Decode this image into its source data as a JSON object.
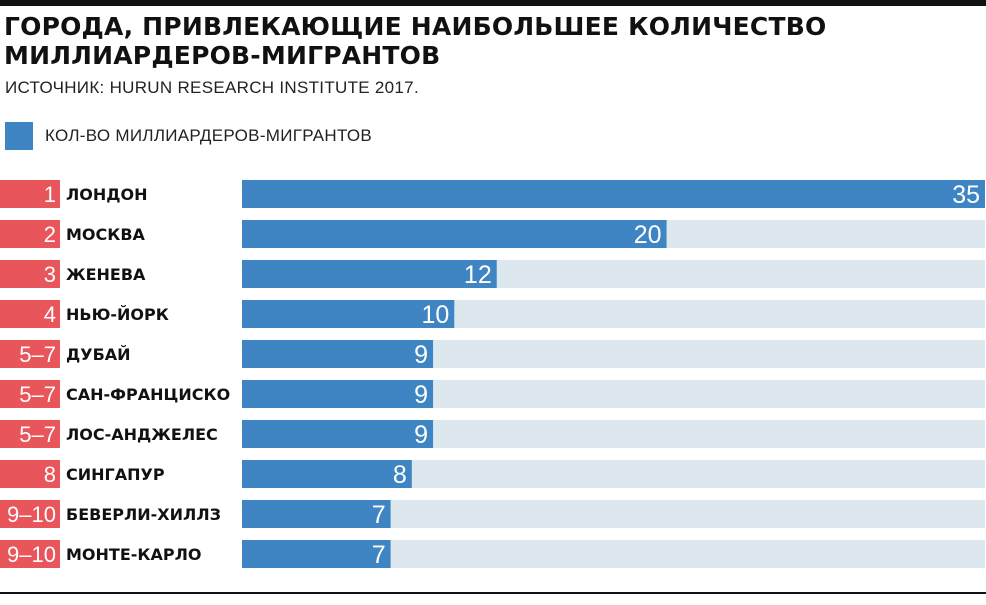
{
  "header": {
    "title": "ГОРОДА, ПРИВЛЕКАЮЩИЕ НАИБОЛЬШЕЕ КОЛИЧЕСТВО МИЛЛИАРДЕРОВ-МИГРАНТОВ",
    "source": "ИСТОЧНИК: HURUN RESEARCH INSTITUTE 2017."
  },
  "colors": {
    "bar": "#3f85c4",
    "track": "#dde7ee",
    "rank": "#e8565b"
  },
  "chart_data": {
    "type": "bar",
    "orientation": "horizontal",
    "title": "ГОРОДА, ПРИВЛЕКАЮЩИЕ НАИБОЛЬШЕЕ КОЛИЧЕСТВО МИЛЛИАРДЕРОВ-МИГРАНТОВ",
    "legend_position": "top-left",
    "xlim": [
      0,
      35
    ],
    "grid": false,
    "series": [
      {
        "name": "КОЛ-ВО МИЛЛИАРДЕРОВ-МИГРАНТОВ",
        "values": [
          35,
          20,
          12,
          10,
          9,
          9,
          9,
          8,
          7,
          7
        ]
      }
    ],
    "categories": [
      "ЛОНДОН",
      "МОСКВА",
      "ЖЕНЕВА",
      "НЬЮ-ЙОРК",
      "ДУБАЙ",
      "САН-ФРАНЦИСКО",
      "ЛОС-АНДЖЕЛЕС",
      "СИНГАПУР",
      "БЕВЕРЛИ-ХИЛЛЗ",
      "МОНТЕ-КАРЛО"
    ],
    "ranks": [
      "1",
      "2",
      "3",
      "4",
      "5–7",
      "5–7",
      "5–7",
      "8",
      "9–10",
      "9–10"
    ]
  }
}
